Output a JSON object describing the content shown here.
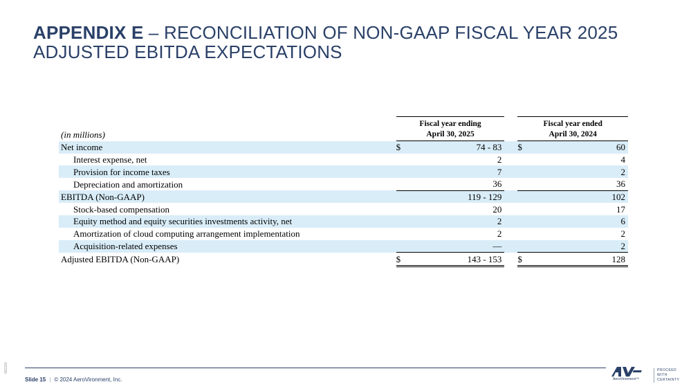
{
  "title": {
    "bold": "APPENDIX E",
    "rest": " – RECONCILIATION OF NON-GAAP FISCAL YEAR 2025 ADJUSTED EBITDA EXPECTATIONS"
  },
  "table": {
    "units": "(in millions)",
    "col1_header": [
      "Fiscal year ending",
      "April 30, 2025"
    ],
    "col2_header": [
      "Fiscal year ended",
      "April 30, 2024"
    ],
    "rows": [
      {
        "label": "Net income",
        "v1": "74 - 83",
        "v2": "60",
        "d1": "$",
        "d2": "$"
      },
      {
        "label": "Interest expense, net",
        "v1": "2",
        "v2": "4",
        "d1": "",
        "d2": ""
      },
      {
        "label": "Provision for income taxes",
        "v1": "7",
        "v2": "2",
        "d1": "",
        "d2": ""
      },
      {
        "label": "Depreciation and amortization",
        "v1": "36",
        "v2": "36",
        "d1": "",
        "d2": ""
      },
      {
        "label": "EBITDA (Non-GAAP)",
        "v1": "119 - 129",
        "v2": "102",
        "d1": "",
        "d2": ""
      },
      {
        "label": "Stock-based compensation",
        "v1": "20",
        "v2": "17",
        "d1": "",
        "d2": ""
      },
      {
        "label": "Equity method and equity securities investments activity, net",
        "v1": "2",
        "v2": "6",
        "d1": "",
        "d2": ""
      },
      {
        "label": "Amortization of cloud computing arrangement implementation",
        "v1": "2",
        "v2": "2",
        "d1": "",
        "d2": ""
      },
      {
        "label": "Acquisition-related expenses",
        "v1": "—",
        "v2": "2",
        "d1": "",
        "d2": ""
      },
      {
        "label": "Adjusted EBITDA (Non-GAAP)",
        "v1": "143 - 153",
        "v2": "128",
        "d1": "$",
        "d2": "$"
      }
    ]
  },
  "footer": {
    "slide": "Slide 15",
    "separator": "|",
    "copyright": "© 2024 AeroVironment, Inc.",
    "side_code": "062200",
    "logo_text": "AV",
    "logo_sub": "AeroVironment™",
    "tagline": [
      "PROCEED",
      "WITH",
      "CERTAINTY"
    ]
  },
  "colors": {
    "title": "#2a4068",
    "row_shade": "#d9edf8",
    "logo": "#2a4068"
  }
}
